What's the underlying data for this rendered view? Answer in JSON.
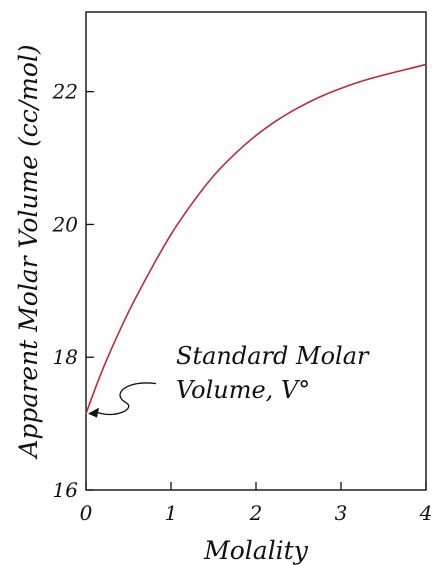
{
  "chart_data": {
    "type": "line",
    "title": "",
    "xlabel": "Molality",
    "ylabel": "Apparent Molar Volume (cc/mol)",
    "xlim": [
      0,
      4
    ],
    "ylim": [
      16,
      23.2
    ],
    "x_ticks": [
      0,
      1,
      2,
      3,
      4
    ],
    "y_ticks": [
      16,
      18,
      20,
      22
    ],
    "x_tick_labels": [
      "0",
      "1",
      "2",
      "3",
      "4"
    ],
    "y_tick_labels": [
      "16",
      "18",
      "20",
      "22"
    ],
    "grid": false,
    "series": [
      {
        "name": "",
        "color": "#c0283a",
        "x": [
          0,
          0.1,
          0.25,
          0.5,
          0.75,
          1.0,
          1.25,
          1.5,
          1.75,
          2.0,
          2.25,
          2.5,
          2.75,
          3.0,
          3.25,
          3.5,
          3.75,
          4.0
        ],
        "y": [
          17.15,
          17.5,
          17.98,
          18.68,
          19.29,
          19.85,
          20.32,
          20.73,
          21.06,
          21.34,
          21.57,
          21.76,
          21.92,
          22.05,
          22.16,
          22.25,
          22.33,
          22.41
        ]
      }
    ],
    "annotations": [
      {
        "text_line1": "Standard Molar",
        "text_line2": "Volume, V°",
        "points_to": {
          "x": 0,
          "y": 17.15
        }
      }
    ]
  },
  "colors": {
    "curve": "#c0283a",
    "axis": "#111111",
    "background": "#ffffff"
  }
}
